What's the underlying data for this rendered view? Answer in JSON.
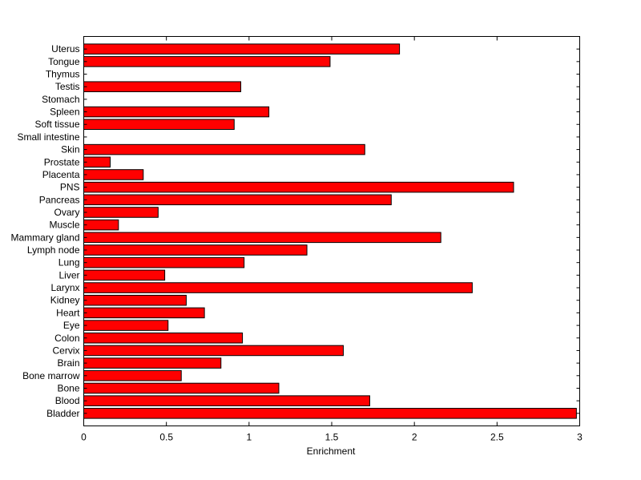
{
  "chart_data": {
    "type": "bar",
    "orientation": "horizontal",
    "title": "",
    "xlabel": "Enrichment",
    "ylabel": "",
    "xlim": [
      0,
      3
    ],
    "xticks": [
      0,
      0.5,
      1,
      1.5,
      2,
      2.5,
      3
    ],
    "xtick_labels": [
      "0",
      "0.5",
      "1",
      "1.5",
      "2",
      "2.5",
      "3"
    ],
    "grid": false,
    "bar_color": "#ff0000",
    "bar_edge_color": "#000000",
    "categories": [
      "Bladder",
      "Blood",
      "Bone",
      "Bone marrow",
      "Brain",
      "Cervix",
      "Colon",
      "Eye",
      "Heart",
      "Kidney",
      "Larynx",
      "Liver",
      "Lung",
      "Lymph node",
      "Mammary gland",
      "Muscle",
      "Ovary",
      "Pancreas",
      "PNS",
      "Placenta",
      "Prostate",
      "Skin",
      "Small intestine",
      "Soft tissue",
      "Spleen",
      "Stomach",
      "Testis",
      "Thymus",
      "Tongue",
      "Uterus"
    ],
    "values": [
      2.98,
      1.73,
      1.18,
      0.59,
      0.83,
      1.57,
      0.96,
      0.51,
      0.73,
      0.62,
      2.35,
      0.49,
      0.97,
      1.35,
      2.16,
      0.21,
      0.45,
      1.86,
      2.6,
      0.36,
      0.16,
      1.7,
      0,
      0.91,
      1.12,
      0,
      0.95,
      0,
      1.49,
      1.91
    ]
  }
}
